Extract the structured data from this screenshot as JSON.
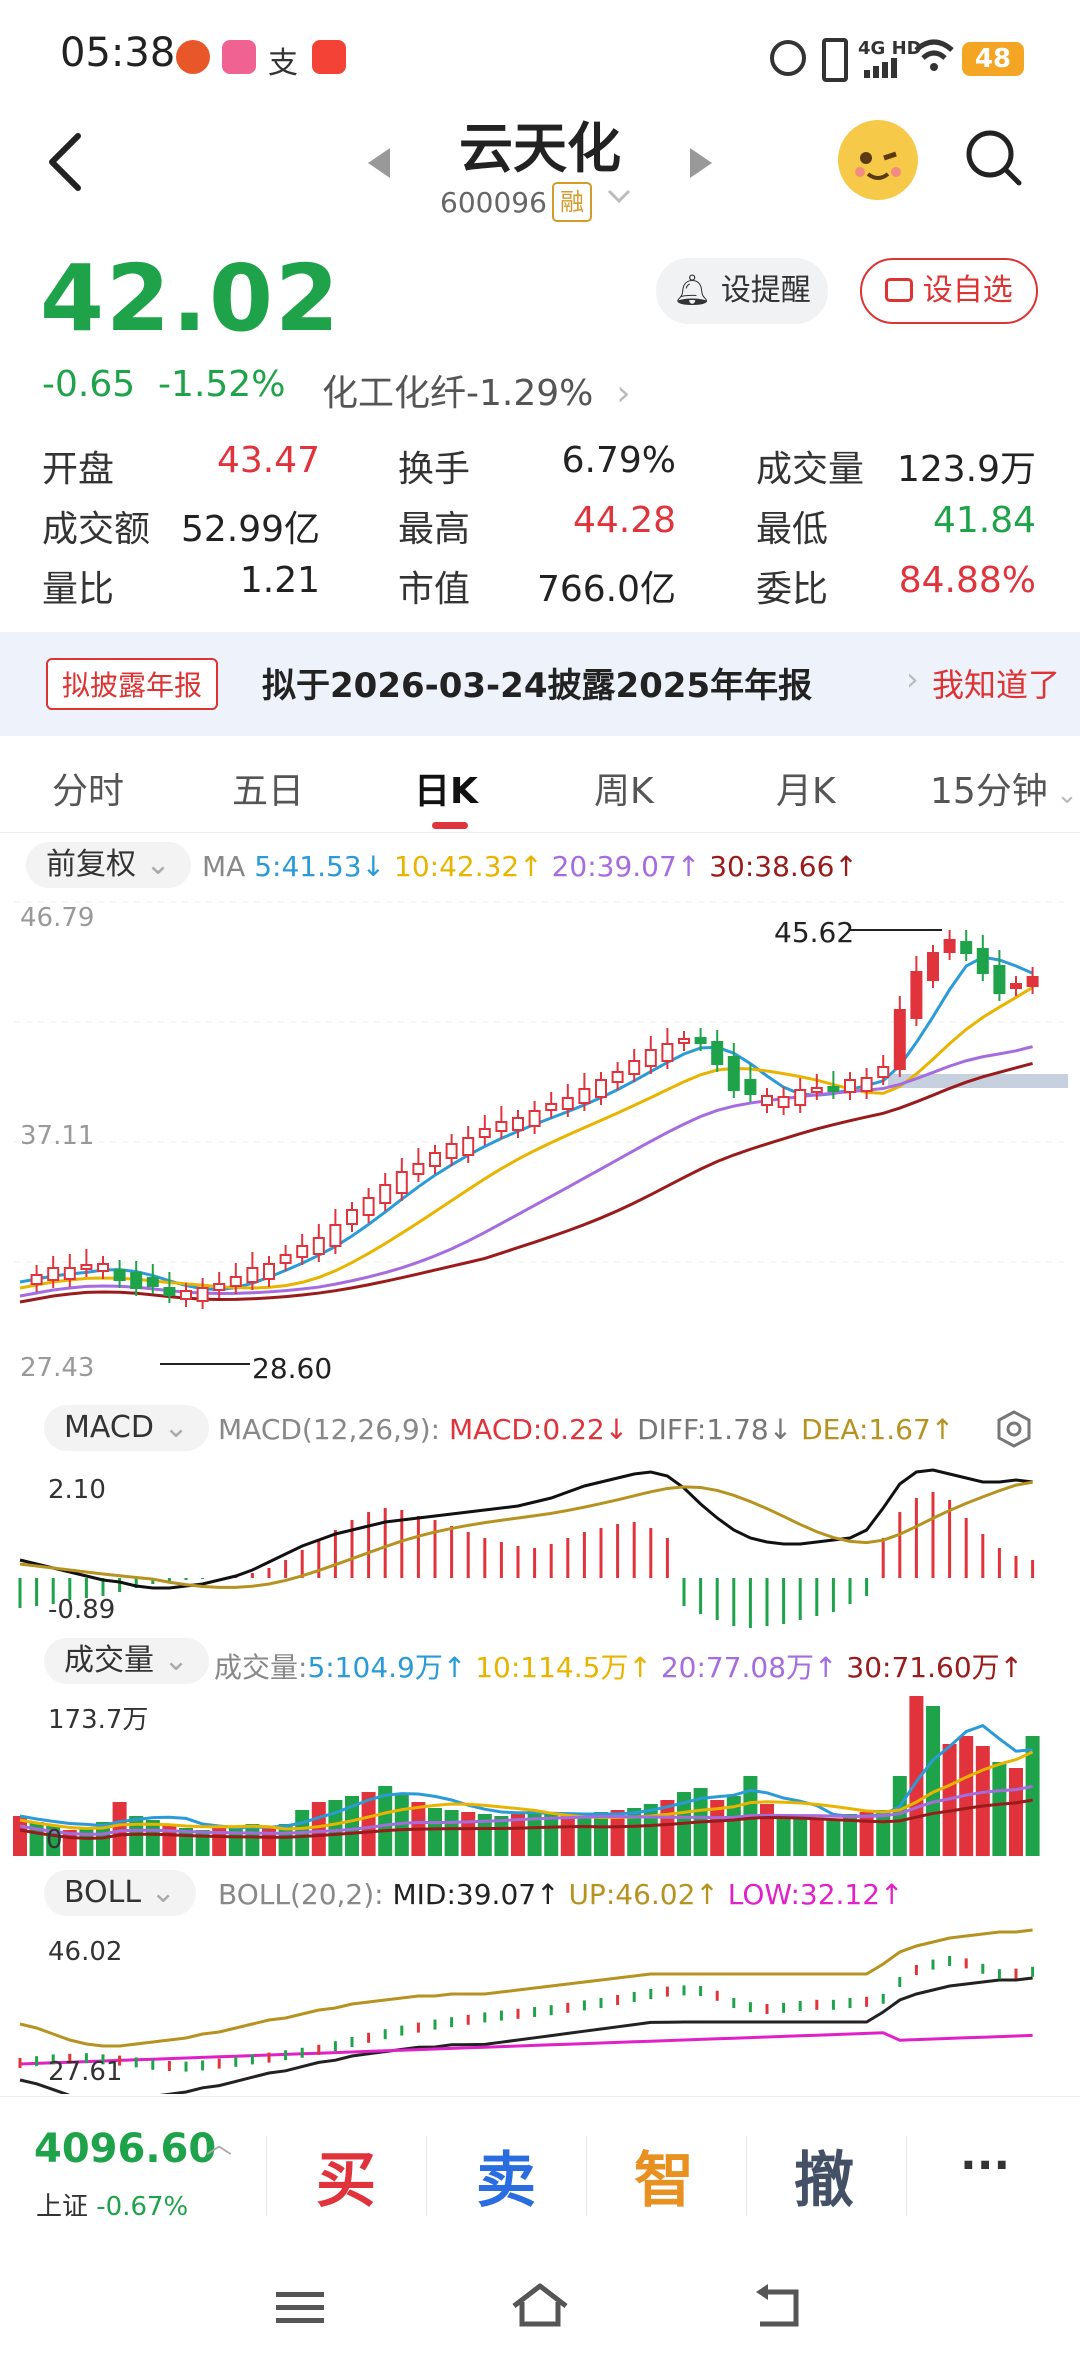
{
  "status_bar": {
    "time": "05:38",
    "network": "4G HD",
    "battery": "48"
  },
  "header": {
    "title": "云天化",
    "code": "600096",
    "margin_badge": "融"
  },
  "quote": {
    "price": "42.02",
    "change": "-0.65",
    "change_pct": "-1.52%",
    "sector": "化工化纤-1.29%",
    "alert_label": "设提醒",
    "watch_label": "设自选",
    "stats": [
      {
        "label": "开盘",
        "value": "43.47",
        "tone": "red"
      },
      {
        "label": "换手",
        "value": "6.79%",
        "tone": "plain"
      },
      {
        "label": "成交量",
        "value": "123.9万",
        "tone": "plain"
      },
      {
        "label": "成交额",
        "value": "52.99亿",
        "tone": "plain"
      },
      {
        "label": "最高",
        "value": "44.28",
        "tone": "red"
      },
      {
        "label": "最低",
        "value": "41.84",
        "tone": "green"
      },
      {
        "label": "量比",
        "value": "1.21",
        "tone": "plain"
      },
      {
        "label": "市值",
        "value": "766.0亿",
        "tone": "plain"
      },
      {
        "label": "委比",
        "value": "84.88%",
        "tone": "red"
      }
    ]
  },
  "notice": {
    "tag": "拟披露年报",
    "text": "拟于2026-03-24披露2025年年报",
    "ack": "我知道了"
  },
  "tabs": [
    "分时",
    "五日",
    "日K",
    "周K",
    "月K",
    "15分钟"
  ],
  "active_tab": "日K",
  "kline": {
    "adjust": "前复权",
    "ma_label": "MA",
    "ma5": "5:41.53↓",
    "ma10": "10:42.32↑",
    "ma20": "20:39.07↑",
    "ma30": "30:38.66↑",
    "y_high": "46.79",
    "y_mid": "37.11",
    "y_low": "27.43",
    "max_marker": "45.62",
    "min_marker": "28.60"
  },
  "macd": {
    "selector": "MACD",
    "params": "MACD(12,26,9):",
    "macd": "MACD:0.22↓",
    "diff": "DIFF:1.78↓",
    "dea": "DEA:1.67↑",
    "y_high": "2.10",
    "y_low": "-0.89"
  },
  "volume": {
    "selector": "成交量",
    "label": "成交量:",
    "v5": "5:104.9万↑",
    "v10": "10:114.5万↑",
    "v20": "20:77.08万↑",
    "v30": "30:71.60万↑",
    "y_high": "173.7万",
    "y_low": "0"
  },
  "boll": {
    "selector": "BOLL",
    "params": "BOLL(20,2):",
    "mid": "MID:39.07↑",
    "up": "UP:46.02↑",
    "low": "LOW:32.12↑",
    "y_high": "46.02",
    "y_low": "27.61"
  },
  "bottom": {
    "index_value": "4096.60",
    "index_name": "上证",
    "index_change": "-0.67%",
    "buy": "买",
    "sell": "卖",
    "smart": "智",
    "cancel": "撤",
    "more": "···"
  },
  "colors": {
    "up": "#e0333c",
    "down": "#1fa34a",
    "ma5": "#2b9bd8",
    "ma10": "#e8b400",
    "ma20": "#a56ce0",
    "ma30": "#9a1b1b"
  }
}
